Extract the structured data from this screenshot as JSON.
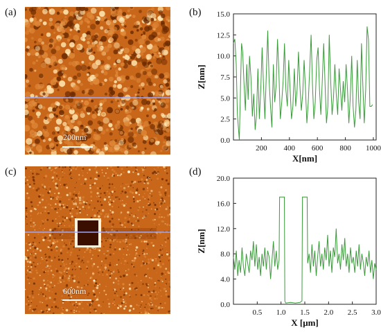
{
  "panels": {
    "a": {
      "label": "(a)",
      "scalebar": "200nm"
    },
    "b": {
      "label": "(b)"
    },
    "c": {
      "label": "(c)",
      "scalebar": "600nm"
    },
    "d": {
      "label": "(d)"
    }
  },
  "colors": {
    "afm_dark": "#6b2a00",
    "afm_mid": "#c8661a",
    "afm_light": "#ffe6b0",
    "scan_line": "#9aa8ff",
    "profile_line": "#3a9a3a"
  },
  "chart_data": [
    {
      "type": "line",
      "panel": "b",
      "xlabel": "X[nm]",
      "ylabel": "Z[nm]",
      "xlim": [
        0,
        1020
      ],
      "ylim": [
        0,
        15
      ],
      "xticks": [
        200,
        400,
        600,
        800,
        1000
      ],
      "yticks": [
        0.0,
        2.5,
        5.0,
        7.5,
        10.0,
        12.5,
        15.0
      ],
      "ytick_labels": [
        "0.0",
        "2.5",
        "5.0",
        "7.5",
        "10.0",
        "12.5",
        "15.0"
      ],
      "series": [
        {
          "x": [
            0,
            10,
            20,
            28,
            35,
            42,
            50,
            58,
            66,
            75,
            85,
            95,
            105,
            115,
            125,
            135,
            145,
            155,
            165,
            175,
            185,
            195,
            205,
            215,
            225,
            235,
            245,
            255,
            265,
            275,
            285,
            295,
            305,
            315,
            325,
            335,
            345,
            355,
            365,
            375,
            385,
            395,
            405,
            415,
            425,
            435,
            445,
            455,
            465,
            475,
            485,
            495,
            505,
            515,
            525,
            535,
            545,
            555,
            565,
            575,
            585,
            595,
            605,
            615,
            625,
            635,
            645,
            655,
            665,
            675,
            685,
            695,
            705,
            715,
            725,
            735,
            745,
            755,
            765,
            775,
            785,
            795,
            805,
            815,
            825,
            835,
            845,
            855,
            865,
            875,
            885,
            895,
            905,
            915,
            925,
            935,
            945,
            955,
            965,
            975,
            985,
            995
          ],
          "y": [
            11.5,
            12.0,
            9.0,
            3.0,
            1.5,
            0.0,
            6.0,
            11.5,
            10.5,
            7.0,
            3.5,
            9.0,
            4.8,
            10.0,
            7.5,
            2.8,
            5.5,
            1.2,
            3.0,
            8.5,
            2.5,
            6.0,
            11.0,
            6.5,
            2.5,
            8.0,
            13.0,
            7.0,
            4.0,
            1.5,
            9.0,
            4.5,
            6.5,
            12.0,
            8.0,
            2.5,
            4.5,
            7.0,
            11.5,
            6.0,
            4.0,
            9.5,
            6.0,
            2.5,
            4.0,
            8.5,
            4.0,
            6.0,
            10.5,
            6.5,
            3.5,
            5.5,
            9.5,
            6.0,
            2.0,
            4.5,
            8.5,
            12.5,
            6.5,
            2.5,
            4.5,
            9.5,
            11.0,
            6.0,
            3.0,
            7.0,
            11.5,
            6.5,
            2.0,
            4.0,
            12.5,
            7.0,
            3.0,
            5.0,
            9.0,
            5.5,
            3.0,
            8.5,
            6.0,
            3.5,
            7.0,
            4.5,
            9.0,
            6.0,
            2.0,
            5.0,
            10.0,
            4.0,
            1.5,
            3.5,
            9.5,
            4.5,
            2.5,
            11.5,
            6.5,
            2.0,
            6.0,
            13.5,
            12.0,
            4.0,
            4.0,
            4.2
          ]
        }
      ]
    },
    {
      "type": "line",
      "panel": "d",
      "xlabel": "X [μm]",
      "ylabel": "Z[nm]",
      "xlim": [
        0,
        3.0
      ],
      "ylim": [
        0,
        20
      ],
      "xticks": [
        0.5,
        1.0,
        1.5,
        2.0,
        2.5,
        3.0
      ],
      "yticks": [
        0.0,
        4.0,
        8.0,
        12.0,
        16.0,
        20.0
      ],
      "ytick_labels": [
        "0.0",
        "4.0",
        "8.0",
        "12.0",
        "16.0",
        "20.0"
      ],
      "series": [
        {
          "x": [
            0.0,
            0.03,
            0.06,
            0.09,
            0.12,
            0.15,
            0.18,
            0.21,
            0.24,
            0.27,
            0.3,
            0.33,
            0.36,
            0.39,
            0.42,
            0.45,
            0.48,
            0.51,
            0.54,
            0.57,
            0.6,
            0.63,
            0.66,
            0.69,
            0.72,
            0.75,
            0.78,
            0.81,
            0.84,
            0.87,
            0.9,
            0.93,
            0.96,
            0.97,
            1.0,
            1.04,
            1.07,
            1.08,
            1.1,
            1.2,
            1.3,
            1.4,
            1.44,
            1.45,
            1.5,
            1.55,
            1.56,
            1.59,
            1.62,
            1.65,
            1.68,
            1.71,
            1.74,
            1.77,
            1.8,
            1.83,
            1.86,
            1.89,
            1.92,
            1.95,
            1.98,
            2.01,
            2.04,
            2.07,
            2.1,
            2.13,
            2.16,
            2.19,
            2.22,
            2.25,
            2.28,
            2.31,
            2.34,
            2.37,
            2.4,
            2.43,
            2.46,
            2.49,
            2.52,
            2.55,
            2.58,
            2.61,
            2.64,
            2.67,
            2.7,
            2.73,
            2.76,
            2.79,
            2.82,
            2.85,
            2.88,
            2.91,
            2.94,
            2.97,
            3.0
          ],
          "y": [
            7.5,
            5.5,
            8.5,
            4.5,
            7.0,
            5.0,
            9.0,
            6.0,
            4.5,
            8.0,
            6.5,
            5.0,
            8.5,
            7.0,
            10.0,
            6.0,
            9.5,
            5.5,
            7.5,
            4.5,
            8.0,
            6.0,
            9.0,
            5.5,
            8.5,
            7.5,
            4.0,
            7.0,
            10.0,
            6.0,
            8.5,
            5.5,
            7.0,
            17.0,
            17.0,
            17.0,
            17.0,
            0.5,
            0.2,
            0.3,
            0.2,
            0.3,
            0.5,
            17.0,
            17.0,
            17.0,
            6.5,
            8.0,
            5.0,
            9.5,
            6.0,
            8.5,
            4.5,
            7.5,
            10.0,
            6.0,
            8.0,
            5.5,
            9.0,
            7.0,
            11.0,
            6.0,
            8.5,
            5.0,
            9.0,
            7.5,
            12.0,
            6.5,
            8.0,
            5.5,
            9.5,
            7.0,
            10.5,
            6.0,
            8.0,
            5.0,
            9.0,
            6.5,
            7.5,
            5.0,
            8.5,
            6.0,
            9.5,
            5.5,
            8.0,
            6.5,
            4.5,
            7.5,
            6.0,
            8.5,
            5.0,
            7.0,
            4.0,
            6.5,
            5.5
          ]
        }
      ]
    }
  ]
}
